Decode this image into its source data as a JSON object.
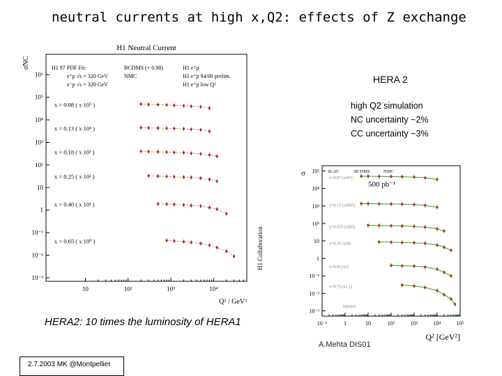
{
  "slide": {
    "title": "neutral currents at high x,Q2: effects of Z exchange",
    "hera2": "HERA 2",
    "note_lines": [
      "high Q2 simulation",
      "NC uncertainty ~2%",
      "CC uncertainty ~3%"
    ],
    "luminosity_text": "HERA2: 10 times the luminosity of HERA1",
    "author": "A.Mehta DIS01",
    "footer": "2.7.2003 MK @Montpellier"
  },
  "colors": {
    "title": "#000080",
    "h1_points": "#cc1111",
    "h1_fit": "#888888",
    "sim_points": "#b03010",
    "sim_curve": "#22aa22"
  },
  "chart_data": [
    {
      "type": "scatter",
      "title": "H1 Neutral Current",
      "ylabel": "σ̃NC",
      "xlabel": "Q² / GeV²",
      "xscale": "log",
      "yscale": "log",
      "xlim": [
        1.2,
        60000
      ],
      "ylim": [
        0.0007,
        8000000
      ],
      "x_tick_labels": [
        "10",
        "10²",
        "10³",
        "10⁴"
      ],
      "y_tick_labels": [
        "10⁻³",
        "10⁻²",
        "10⁻¹",
        "1",
        "10",
        "10²",
        "10³",
        "10⁴",
        "10⁵",
        "10⁶"
      ],
      "legend": [
        "H1 97 PDF Fit:",
        "e⁺p √s = 320 GeV",
        "e⁻p √s = 320 GeV",
        "BCDMS (× 0.98)",
        "NMC",
        "H1 e⁺p",
        "H1 e⁺p 94/00 prelim.",
        "H1 e⁺p low Q²"
      ],
      "side_label": "H1 Collaboration",
      "series": [
        {
          "name": "x = 0.08 ( x 10⁵ )",
          "scale": 100000,
          "x": [
            200,
            300,
            500,
            800,
            1200,
            2000,
            3000,
            5000,
            8000
          ],
          "y": [
            0.5,
            0.48,
            0.47,
            0.46,
            0.44,
            0.42,
            0.4,
            0.38,
            0.33
          ]
        },
        {
          "name": "x = 0.13 ( x 10⁴ )",
          "scale": 10000,
          "x": [
            200,
            300,
            500,
            800,
            1200,
            2000,
            3000,
            5000,
            8000
          ],
          "y": [
            0.45,
            0.44,
            0.43,
            0.42,
            0.41,
            0.4,
            0.38,
            0.36,
            0.31
          ]
        },
        {
          "name": "x = 0.18 ( x 10³ )",
          "scale": 1000,
          "x": [
            200,
            300,
            500,
            800,
            1200,
            2000,
            3000,
            5000,
            8000,
            12000
          ],
          "y": [
            0.4,
            0.39,
            0.38,
            0.37,
            0.36,
            0.35,
            0.33,
            0.31,
            0.28,
            0.24
          ]
        },
        {
          "name": "x = 0.25 ( x 10² )",
          "scale": 100,
          "x": [
            300,
            500,
            800,
            1200,
            2000,
            3000,
            5000,
            8000,
            12000
          ],
          "y": [
            0.33,
            0.32,
            0.31,
            0.3,
            0.29,
            0.28,
            0.26,
            0.23,
            0.19
          ]
        },
        {
          "name": "x = 0.40 ( x 10¹ )",
          "scale": 10,
          "x": [
            500,
            800,
            1200,
            2000,
            3000,
            5000,
            8000,
            12000,
            20000
          ],
          "y": [
            0.19,
            0.185,
            0.18,
            0.17,
            0.16,
            0.15,
            0.13,
            0.11,
            0.07
          ]
        },
        {
          "name": "x = 0.65 ( x 10⁰ )",
          "scale": 1,
          "x": [
            800,
            1200,
            2000,
            3000,
            5000,
            8000,
            12000,
            20000,
            30000
          ],
          "y": [
            0.045,
            0.043,
            0.04,
            0.037,
            0.033,
            0.028,
            0.022,
            0.015,
            0.009
          ]
        }
      ]
    },
    {
      "type": "scatter",
      "title": "",
      "ylabel": "σ",
      "xlabel": "Q² [GeV²]",
      "xscale": "log",
      "yscale": "log",
      "xlim": [
        0.1,
        100000
      ],
      "ylim": [
        0.0005,
        200000
      ],
      "x_tick_labels": [
        "10⁻¹",
        "1",
        "10",
        "10²",
        "10³",
        "10⁴",
        "10⁵"
      ],
      "y_tick_labels": [
        "10⁻³",
        "10⁻²",
        "10⁻¹",
        "1",
        "10",
        "10²",
        "10³",
        "10⁴",
        "10⁵"
      ],
      "legend": [
        "SLAC",
        "BCDMS",
        "NMC",
        "500 pb⁻¹"
      ],
      "curve_label": "MRSH",
      "series": [
        {
          "name": "x=0.07 (x10⁵)",
          "scale": 100000,
          "x": [
            5,
            10,
            30,
            100,
            300,
            1000,
            3000,
            10000
          ],
          "y": [
            0.5,
            0.5,
            0.49,
            0.48,
            0.47,
            0.45,
            0.41,
            0.33
          ]
        },
        {
          "name": "x=0.13 (x3005)",
          "scale": 3005,
          "x": [
            5,
            10,
            30,
            100,
            300,
            1000,
            3000,
            10000
          ],
          "y": [
            0.45,
            0.45,
            0.44,
            0.43,
            0.42,
            0.4,
            0.36,
            0.28
          ]
        },
        {
          "name": "x=0.225 (x205)",
          "scale": 205,
          "x": [
            10,
            30,
            100,
            300,
            1000,
            3000,
            10000,
            20000
          ],
          "y": [
            0.38,
            0.37,
            0.36,
            0.35,
            0.33,
            0.3,
            0.24,
            0.18
          ]
        },
        {
          "name": "x=0.35 (x29)",
          "scale": 29,
          "x": [
            30,
            100,
            300,
            1000,
            3000,
            10000,
            20000,
            40000
          ],
          "y": [
            0.3,
            0.29,
            0.28,
            0.27,
            0.25,
            0.2,
            0.15,
            0.1
          ]
        },
        {
          "name": "x=0.45 (x2)",
          "scale": 2,
          "x": [
            100,
            300,
            1000,
            3000,
            10000,
            20000,
            40000
          ],
          "y": [
            0.2,
            0.19,
            0.18,
            0.16,
            0.12,
            0.08,
            0.05
          ]
        },
        {
          "name": "x=0.75 (x1.2)",
          "scale": 1.2,
          "x": [
            300,
            1000,
            3000,
            10000,
            20000,
            40000,
            60000
          ],
          "y": [
            0.025,
            0.022,
            0.018,
            0.012,
            0.007,
            0.004,
            0.002
          ]
        }
      ]
    }
  ]
}
